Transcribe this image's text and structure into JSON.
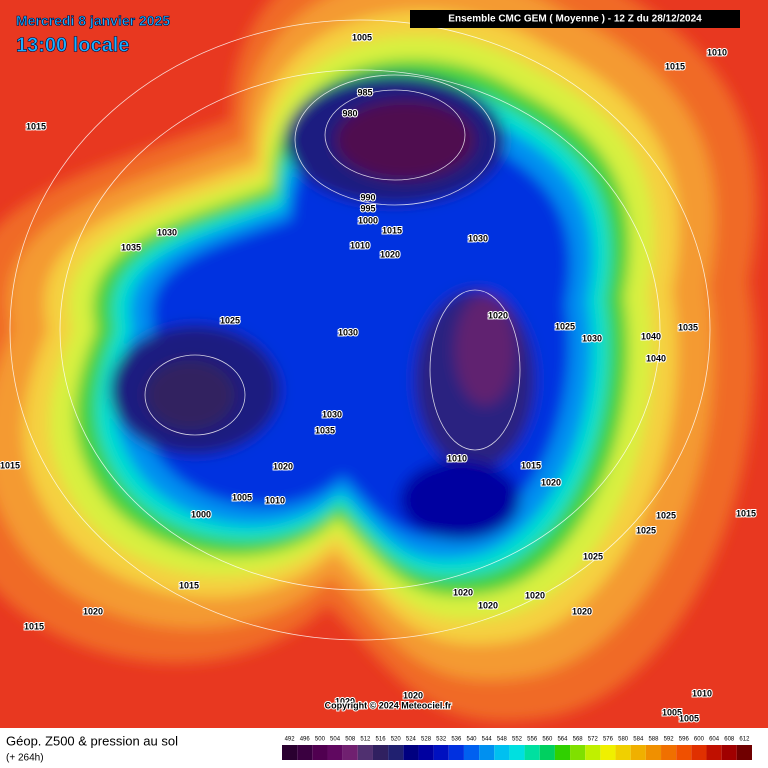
{
  "header": {
    "date": "Mercredi 8 janvier 2025",
    "time": "13:00 locale",
    "run": "Ensemble CMC GEM  ( Moyenne )  -  12 Z du 28/12/2024"
  },
  "map": {
    "pressure_labels": [
      "1005",
      "985",
      "980",
      "990",
      "995",
      "1000",
      "1015",
      "1010",
      "1020",
      "1030",
      "1015",
      "1015",
      "1010",
      "1030",
      "1035",
      "1025",
      "1030",
      "1020",
      "1025",
      "1030",
      "1040",
      "1035",
      "1040",
      "1030",
      "1035",
      "1020",
      "1010",
      "1015",
      "1020",
      "1005",
      "1010",
      "1000",
      "1015",
      "1025",
      "1015",
      "1025",
      "1025",
      "1015",
      "1020",
      "1015",
      "1020",
      "1020",
      "1020",
      "1020",
      "1020",
      "1020",
      "1010",
      "1005",
      "1005"
    ],
    "copyright": "Copyright © 2024 Meteociel.fr"
  },
  "footer": {
    "title": "Géop. Z500 & pression au sol",
    "lead": "(+ 264h)"
  },
  "scale": {
    "values": [
      492,
      496,
      500,
      504,
      508,
      512,
      516,
      520,
      524,
      528,
      532,
      536,
      540,
      544,
      548,
      552,
      556,
      560,
      564,
      568,
      572,
      576,
      580,
      584,
      588,
      592,
      596,
      600,
      604,
      608,
      612
    ],
    "colors": [
      "#2a0030",
      "#3a0040",
      "#500050",
      "#600860",
      "#702070",
      "#503070",
      "#302060",
      "#202070",
      "#000080",
      "#0000a0",
      "#0010c0",
      "#0030e0",
      "#0060f0",
      "#0090f0",
      "#00c0f0",
      "#00e0e0",
      "#00e0a0",
      "#00d060",
      "#30d000",
      "#80e000",
      "#c0f000",
      "#f0f000",
      "#f0d000",
      "#f0b000",
      "#f09000",
      "#f07000",
      "#f05000",
      "#e03000",
      "#c01000",
      "#a00000",
      "#700000"
    ]
  }
}
